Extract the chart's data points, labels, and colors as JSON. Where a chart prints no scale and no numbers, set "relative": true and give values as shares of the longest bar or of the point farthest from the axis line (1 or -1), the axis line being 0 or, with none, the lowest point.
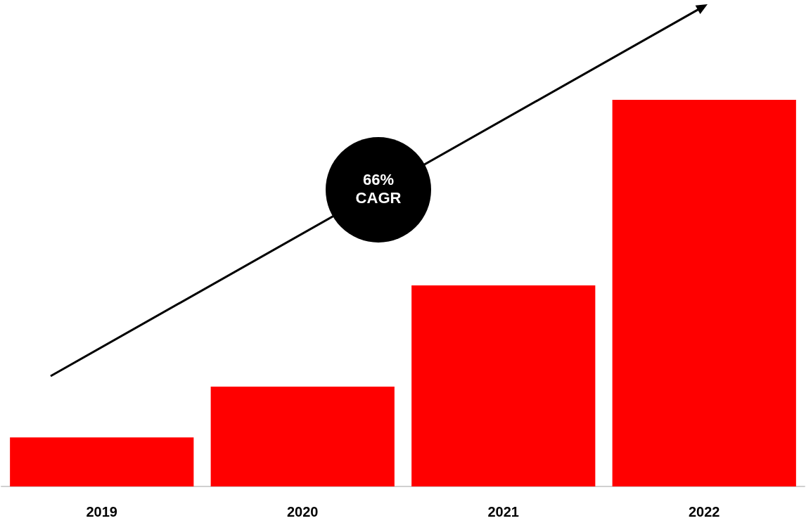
{
  "chart_data": {
    "type": "bar",
    "relative": true,
    "categories": [
      "2019",
      "2020",
      "2021",
      "2022"
    ],
    "values": [
      0.127,
      0.258,
      0.52,
      1
    ],
    "color": "#ff0000",
    "annotations": [
      "66% CAGR"
    ]
  }
}
